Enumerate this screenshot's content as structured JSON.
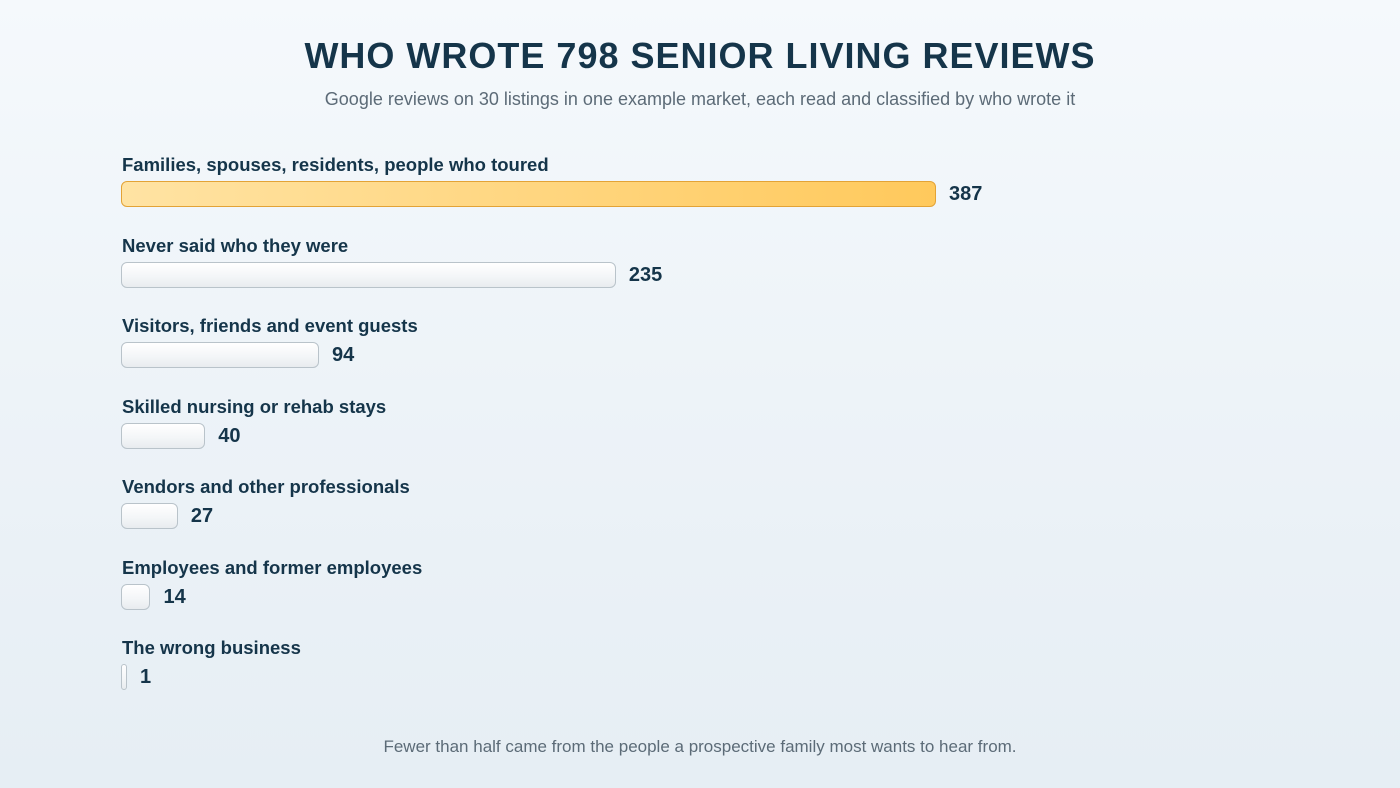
{
  "colors": {
    "highlight_fill": "#ffd57d",
    "highlight_border": "#e3a336",
    "neutral_fill": "#f4f6f8",
    "neutral_border": "#b9c3ca",
    "text": "#15354a",
    "muted_text": "#5c6b77"
  },
  "chart_data": {
    "type": "bar",
    "orientation": "horizontal",
    "title": "WHO WROTE 798 SENIOR LIVING REVIEWS",
    "subtitle": "Google reviews on 30 listings in one example market, each read and classified by who wrote it",
    "footnote": "Fewer than half came from the people a prospective family most wants to hear from.",
    "categories": [
      "Families, spouses, residents, people who toured",
      "Never said who they were",
      "Visitors, friends and event guests",
      "Skilled nursing or rehab stays",
      "Vendors and other professionals",
      "Employees and former employees",
      "The wrong business"
    ],
    "values": [
      387,
      235,
      94,
      40,
      27,
      14,
      1
    ],
    "highlighted_category": "Families, spouses, residents, people who toured",
    "xlim": [
      0,
      387
    ],
    "grid": false,
    "legend": "none"
  }
}
